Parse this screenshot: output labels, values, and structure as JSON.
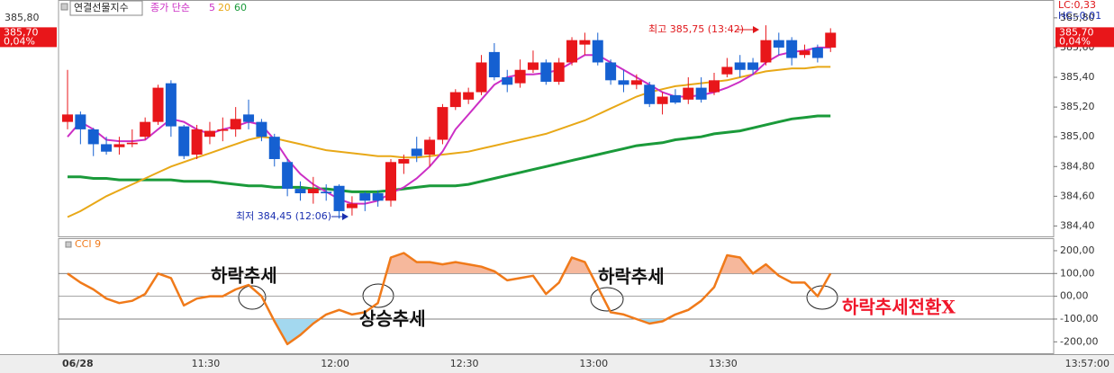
{
  "chart_data": [
    {
      "type": "candlestick",
      "title": "연결선물지수",
      "legend_prefix": "종가 단순",
      "categories": [
        "06/28",
        null,
        null,
        null,
        null,
        null,
        null,
        null,
        null,
        null,
        "11:30",
        null,
        null,
        null,
        null,
        null,
        null,
        null,
        null,
        null,
        "12:00",
        null,
        null,
        null,
        null,
        null,
        null,
        null,
        null,
        null,
        "12:30",
        null,
        null,
        null,
        null,
        null,
        null,
        null,
        null,
        null,
        "13:00",
        null,
        null,
        null,
        null,
        null,
        null,
        null,
        null,
        null,
        "13:30",
        null,
        null,
        null,
        null,
        null,
        null,
        null,
        null,
        null
      ],
      "cursor_time": "13:57:00",
      "open": [
        385.1,
        385.15,
        385.05,
        384.95,
        384.93,
        384.95,
        385.0,
        385.1,
        385.36,
        385.07,
        384.88,
        385.0,
        385.04,
        385.05,
        385.15,
        385.1,
        385.0,
        384.83,
        384.65,
        384.62,
        384.63,
        384.67,
        384.52,
        384.62,
        384.62,
        384.57,
        384.82,
        384.92,
        384.88,
        384.98,
        385.2,
        385.25,
        385.3,
        385.57,
        385.4,
        385.36,
        385.45,
        385.5,
        385.37,
        385.5,
        385.62,
        385.65,
        385.5,
        385.38,
        385.35,
        385.35,
        385.22,
        385.28,
        385.25,
        385.33,
        385.3,
        385.42,
        385.5,
        385.5,
        385.5,
        385.65,
        385.65,
        385.55,
        385.6,
        385.6
      ],
      "high": [
        385.45,
        385.17,
        385.06,
        385.0,
        385.0,
        385.05,
        385.13,
        385.35,
        385.38,
        385.08,
        385.08,
        385.1,
        385.13,
        385.2,
        385.25,
        385.12,
        385.02,
        384.85,
        384.7,
        384.73,
        384.68,
        384.68,
        384.6,
        384.63,
        384.64,
        384.85,
        384.88,
        385.0,
        385.0,
        385.22,
        385.32,
        385.33,
        385.55,
        385.63,
        385.45,
        385.52,
        385.58,
        385.52,
        385.53,
        385.67,
        385.7,
        385.7,
        385.52,
        385.45,
        385.42,
        385.37,
        385.3,
        385.32,
        385.4,
        385.4,
        385.43,
        385.53,
        385.55,
        385.53,
        385.75,
        385.7,
        385.67,
        385.62,
        385.62,
        385.73
      ],
      "low": [
        385.05,
        384.95,
        384.87,
        384.88,
        384.88,
        384.93,
        384.98,
        385.08,
        385.0,
        384.85,
        384.85,
        384.95,
        384.97,
        385.0,
        385.05,
        384.97,
        384.8,
        384.6,
        384.57,
        384.55,
        384.57,
        384.45,
        384.47,
        384.5,
        384.53,
        384.53,
        384.75,
        384.83,
        384.8,
        384.95,
        385.18,
        385.22,
        385.28,
        385.38,
        385.3,
        385.33,
        385.43,
        385.35,
        385.35,
        385.48,
        385.55,
        385.48,
        385.35,
        385.3,
        385.32,
        385.2,
        385.15,
        385.22,
        385.22,
        385.23,
        385.28,
        385.4,
        385.4,
        385.42,
        385.48,
        385.55,
        385.48,
        385.53,
        385.5,
        385.57
      ],
      "close": [
        385.15,
        385.05,
        384.95,
        384.9,
        384.95,
        384.96,
        385.1,
        385.33,
        385.07,
        384.87,
        385.05,
        385.04,
        385.05,
        385.12,
        385.1,
        385.0,
        384.85,
        384.65,
        384.62,
        384.65,
        384.62,
        384.5,
        384.55,
        384.57,
        384.57,
        384.83,
        384.85,
        384.87,
        384.98,
        385.2,
        385.3,
        385.3,
        385.5,
        385.4,
        385.35,
        385.45,
        385.5,
        385.37,
        385.5,
        385.65,
        385.65,
        385.5,
        385.38,
        385.35,
        385.38,
        385.22,
        385.27,
        385.23,
        385.33,
        385.25,
        385.38,
        385.47,
        385.45,
        385.45,
        385.65,
        385.6,
        385.53,
        385.58,
        385.53,
        385.7
      ],
      "up_color": "#e8161a",
      "down_color": "#1560d1",
      "series": [
        {
          "name": "5",
          "color": "#cc2fc5",
          "values": [
            385.0,
            385.1,
            385.05,
            384.98,
            384.97,
            384.97,
            384.98,
            385.05,
            385.12,
            385.1,
            385.05,
            385.02,
            385.05,
            385.07,
            385.1,
            385.08,
            384.98,
            384.85,
            384.75,
            384.68,
            384.63,
            384.58,
            384.55,
            384.55,
            384.57,
            384.62,
            384.66,
            384.72,
            384.8,
            384.9,
            385.05,
            385.15,
            385.25,
            385.35,
            385.4,
            385.42,
            385.42,
            385.43,
            385.45,
            385.5,
            385.55,
            385.55,
            385.5,
            385.45,
            385.4,
            385.35,
            385.3,
            385.27,
            385.27,
            385.28,
            385.3,
            385.33,
            385.37,
            385.42,
            385.5,
            385.55,
            385.57,
            385.58,
            385.6,
            385.6
          ]
        },
        {
          "name": "20",
          "color": "#e8a817",
          "values": [
            384.46,
            384.5,
            384.55,
            384.6,
            384.64,
            384.68,
            384.72,
            384.76,
            384.8,
            384.83,
            384.86,
            384.89,
            384.92,
            384.95,
            384.98,
            385.0,
            384.99,
            384.97,
            384.95,
            384.93,
            384.91,
            384.9,
            384.89,
            384.88,
            384.87,
            384.87,
            384.86,
            384.86,
            384.87,
            384.88,
            384.89,
            384.9,
            384.92,
            384.94,
            384.96,
            384.98,
            385.0,
            385.02,
            385.05,
            385.08,
            385.11,
            385.15,
            385.19,
            385.23,
            385.27,
            385.3,
            385.32,
            385.34,
            385.35,
            385.36,
            385.37,
            385.38,
            385.4,
            385.42,
            385.44,
            385.45,
            385.46,
            385.46,
            385.47,
            385.47
          ]
        },
        {
          "name": "60",
          "color": "#1a9a3a",
          "values": [
            384.73,
            384.73,
            384.72,
            384.72,
            384.71,
            384.71,
            384.71,
            384.71,
            384.71,
            384.7,
            384.7,
            384.7,
            384.69,
            384.68,
            384.67,
            384.67,
            384.66,
            384.66,
            384.66,
            384.65,
            384.65,
            384.64,
            384.63,
            384.63,
            384.63,
            384.64,
            384.65,
            384.66,
            384.67,
            384.67,
            384.67,
            384.68,
            384.7,
            384.72,
            384.74,
            384.76,
            384.78,
            384.8,
            384.82,
            384.84,
            384.86,
            384.88,
            384.9,
            384.92,
            384.94,
            384.95,
            384.96,
            384.98,
            384.99,
            385.0,
            385.02,
            385.03,
            385.04,
            385.06,
            385.08,
            385.1,
            385.12,
            385.13,
            385.14,
            385.14
          ]
        }
      ],
      "ylim": [
        384.33,
        385.92
      ],
      "yticks": [
        {
          "value": 385.8,
          "label": "385,80"
        },
        {
          "value": 385.6,
          "label": "385,60"
        },
        {
          "value": 385.4,
          "label": "385,40"
        },
        {
          "value": 385.2,
          "label": "385,20"
        },
        {
          "value": 385.0,
          "label": "385,00"
        },
        {
          "value": 384.8,
          "label": "384,80"
        },
        {
          "value": 384.6,
          "label": "384,60"
        },
        {
          "value": 384.4,
          "label": "384,40"
        }
      ],
      "last_price": {
        "value": 385.7,
        "label": "385,70"
      },
      "change": {
        "value": 0.04,
        "label": "0,04%"
      },
      "lc_label": "LC:0,33",
      "hc_label": "HC:-0,01",
      "annotations": [
        {
          "text": "최고 385,75 (13:42)",
          "color": "#e0161a"
        },
        {
          "text": "최저 384,45 (12:06)",
          "color": "#1a2fb0"
        }
      ]
    },
    {
      "type": "line",
      "series": [
        {
          "name": "CCI 9",
          "color": "#f07a1a",
          "values": [
            100,
            60,
            30,
            -10,
            -30,
            -20,
            10,
            100,
            80,
            -40,
            -10,
            0,
            0,
            30,
            50,
            0,
            -110,
            -210,
            -170,
            -120,
            -80,
            -60,
            -80,
            -70,
            -30,
            170,
            190,
            150,
            150,
            140,
            150,
            140,
            130,
            110,
            70,
            80,
            90,
            10,
            60,
            170,
            150,
            40,
            -70,
            -80,
            -100,
            -120,
            -110,
            -80,
            -60,
            -20,
            40,
            180,
            170,
            100,
            140,
            90,
            60,
            60,
            0,
            100
          ]
        }
      ],
      "ylim": [
        -250,
        255
      ],
      "yticks": [
        {
          "value": 200,
          "label": "200,00"
        },
        {
          "value": 100,
          "label": "100,00"
        },
        {
          "value": 0,
          "label": "00,00"
        },
        {
          "value": -100,
          "label": "-100,00"
        },
        {
          "value": -200,
          "label": "-200,00"
        }
      ],
      "levels": [
        100,
        0,
        -100
      ],
      "overbought_color": "#f6b89c",
      "oversold_color": "#a3d8ef",
      "annotations": [
        {
          "text": "하락추세",
          "color": "#111111"
        },
        {
          "text": "상승추세",
          "color": "#111111"
        },
        {
          "text": "하락추세",
          "color": "#111111"
        },
        {
          "text": "하락추세전환X",
          "color": "#f0162a"
        }
      ]
    }
  ]
}
